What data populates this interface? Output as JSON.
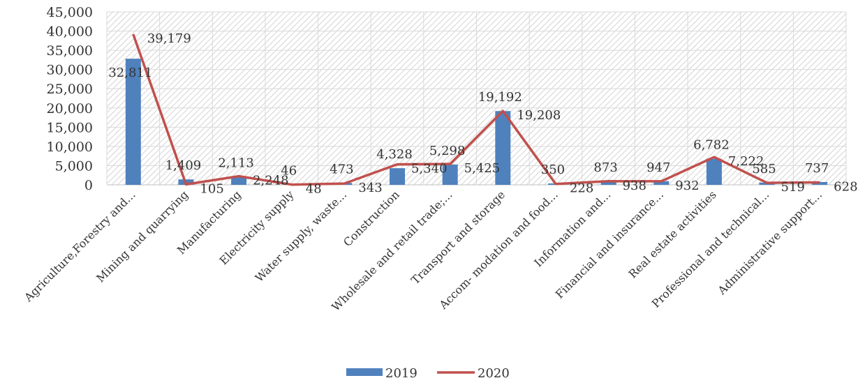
{
  "chart_data": {
    "type": "bar",
    "categories": [
      "Agriculture,Forestry and...",
      "Mining and quarrying",
      "Manufacturing",
      "Electricity supply",
      "Water supply, waste...",
      "Construction",
      "Wholesale and retail trade;...",
      "Transport and storage",
      "Accom- modation and food...",
      "Information and...",
      "Financial and insurance...",
      "Real estate activities",
      "Professional and technical...",
      "Administrative support..."
    ],
    "series": [
      {
        "name": "2019",
        "type": "bar",
        "color": "#4f81bd",
        "values": [
          32811,
          1409,
          2113,
          46,
          473,
          4328,
          5298,
          19192,
          350,
          873,
          947,
          6782,
          585,
          737
        ],
        "labels": [
          "32,811",
          "1,409",
          "2,113",
          "46",
          "473",
          "4,328",
          "5,298",
          "19,192",
          "350",
          "873",
          "947",
          "6,782",
          "585",
          "737"
        ]
      },
      {
        "name": "2020",
        "type": "line",
        "color": "#c0504d",
        "values": [
          39179,
          105,
          2248,
          48,
          343,
          5340,
          5425,
          19208,
          228,
          938,
          932,
          7222,
          519,
          628
        ],
        "labels": [
          "39,179",
          "105",
          "2,248",
          "48",
          "343",
          "5,340",
          "5,425",
          "19,208",
          "228",
          "938",
          "932",
          "7,222",
          "519",
          "628"
        ]
      }
    ],
    "y_ticks": [
      "0",
      "5,000",
      "10,000",
      "15,000",
      "20,000",
      "25,000",
      "30,000",
      "35,000",
      "40,000",
      "45,000"
    ],
    "ylim": [
      0,
      45000
    ],
    "grid": true,
    "legend": "bottom"
  }
}
